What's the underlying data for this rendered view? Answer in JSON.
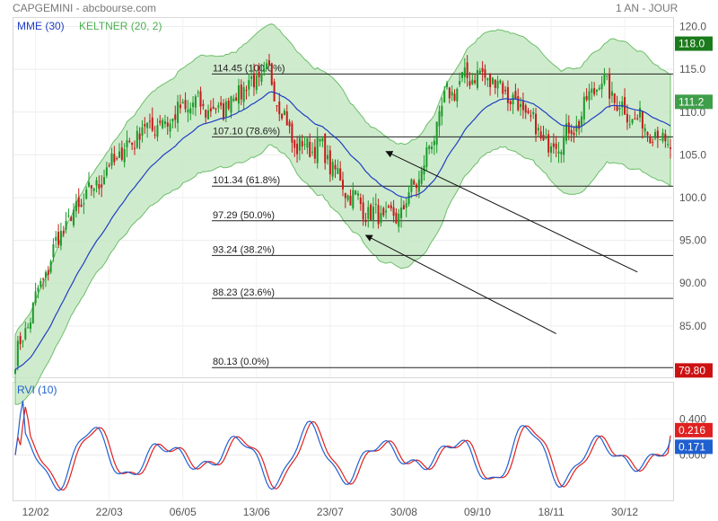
{
  "header": {
    "title": "CAPGEMINI - abcbourse.com",
    "period": "1 AN - JOUR"
  },
  "chart_data": [
    {
      "type": "candlestick",
      "indicators": [
        {
          "name": "MME (30)",
          "color": "#1f3fc4"
        },
        {
          "name": "KELTNER (20, 2)",
          "color": "#4caf50"
        }
      ],
      "ylim": [
        79,
        121
      ],
      "y_ticks": [
        "85.00",
        "90.00",
        "95.00",
        "100.0",
        "105.0",
        "110.0",
        "115.0",
        "120.0"
      ],
      "x_tick_labels": [
        "12/02",
        "22/03",
        "06/05",
        "13/06",
        "23/07",
        "30/08",
        "09/10",
        "18/11",
        "30/12"
      ],
      "price_labels": [
        {
          "text": "118.0",
          "value": 118.0,
          "color": "#1b7a1b"
        },
        {
          "text": "111.2",
          "value": 111.2,
          "color": "#3f9e4a"
        },
        {
          "text": "79.80",
          "value": 79.8,
          "color": "#cc1111"
        }
      ],
      "fibonacci_levels": [
        {
          "value": 114.45,
          "label": "114.45  (100.0%)"
        },
        {
          "value": 107.1,
          "label": "107.10  (78.6%)"
        },
        {
          "value": 101.34,
          "label": "101.34  (61.8%)"
        },
        {
          "value": 97.29,
          "label": "97.29  (50.0%)"
        },
        {
          "value": 93.24,
          "label": "93.24  (38.2%)"
        },
        {
          "value": 88.23,
          "label": "88.23  (23.6%)"
        },
        {
          "value": 80.13,
          "label": "80.13  (0.0%)"
        }
      ],
      "close_series": {
        "t": [
          0,
          8,
          18,
          28,
          38,
          50,
          60,
          70,
          80,
          90,
          100,
          110,
          120,
          130,
          140,
          150,
          160,
          170,
          180,
          190,
          200,
          210,
          220,
          230,
          240,
          250,
          258
        ],
        "close": [
          81,
          88,
          96,
          100,
          104,
          108,
          109,
          111,
          110,
          113,
          114.4,
          106,
          106,
          101,
          98,
          97.5,
          103,
          112,
          114.5,
          113.5,
          110,
          106,
          108,
          114,
          110,
          108,
          106
        ]
      },
      "arrows": [
        {
          "from": [
            245,
            91.3
          ],
          "to": [
            146,
            105.4
          ]
        },
        {
          "from": [
            213,
            84.1
          ],
          "to": [
            138,
            95.6
          ]
        }
      ]
    },
    {
      "type": "line",
      "series": [
        {
          "name": "RVI (10)",
          "color": "#1f5fd0"
        },
        {
          "color": "#e02020"
        }
      ],
      "ylim": [
        -0.5,
        0.8
      ],
      "y_ticks": [
        "0.400",
        "0.000"
      ],
      "value_labels": [
        {
          "text": "0.216",
          "value": 0.216,
          "color": "#e02020"
        },
        {
          "text": "0.171",
          "value": 0.171,
          "color": "#1f5fd0"
        }
      ]
    }
  ]
}
